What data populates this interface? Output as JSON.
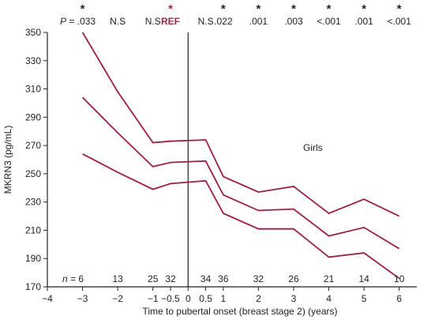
{
  "chart_data": {
    "type": "line",
    "xlabel": "Time to pubertal onset (breast stage 2) (years)",
    "ylabel": "MKRN3 (pg/mL)",
    "annotation": "Girls",
    "xlim": [
      -4,
      6.5
    ],
    "ylim": [
      170,
      350
    ],
    "x_ticks": [
      -4,
      -3,
      -2,
      -1,
      -0.5,
      0,
      0.5,
      1,
      2,
      3,
      4,
      5,
      6
    ],
    "x_tick_labels": [
      "−4",
      "−3",
      "−2",
      "−1",
      "−0.5",
      "0",
      "0.5",
      "1",
      "2",
      "3",
      "4",
      "5",
      "6"
    ],
    "y_ticks": [
      170,
      190,
      210,
      230,
      250,
      270,
      290,
      310,
      330,
      350
    ],
    "x": [
      -3,
      -2,
      -1,
      -0.5,
      0.5,
      1,
      2,
      3,
      4,
      5,
      6
    ],
    "series": [
      {
        "values": [
          350,
          308,
          272,
          273,
          274,
          248,
          237,
          241,
          222,
          232,
          220
        ]
      },
      {
        "values": [
          304,
          279,
          255,
          258,
          259,
          235,
          224,
          225,
          206,
          212,
          197
        ]
      },
      {
        "values": [
          264,
          251,
          239,
          243,
          245,
          222,
          211,
          211,
          191,
          194,
          176
        ]
      }
    ],
    "reference_x": 0,
    "p_values": [
      {
        "x": -3,
        "label": ".033",
        "prefix": "P",
        "star": true
      },
      {
        "x": -2,
        "label": "N.S",
        "star": false
      },
      {
        "x": -1,
        "label": "N.S",
        "star": false
      },
      {
        "x": -0.5,
        "label": "REF",
        "star": true,
        "ref": true
      },
      {
        "x": 0.5,
        "label": "N.S",
        "star": false
      },
      {
        "x": 1,
        "label": ".022",
        "star": true
      },
      {
        "x": 2,
        "label": ".001",
        "star": true
      },
      {
        "x": 3,
        "label": ".003",
        "star": true
      },
      {
        "x": 4,
        "label": "<.001",
        "star": true
      },
      {
        "x": 5,
        "label": ".001",
        "star": true
      },
      {
        "x": 6,
        "label": "<.001",
        "star": true
      }
    ],
    "p_prefix_sep": " = ",
    "star_symbol": "*",
    "n_label": "n",
    "n_sep": " = ",
    "n_values": [
      {
        "x": -3,
        "n": "6"
      },
      {
        "x": -2,
        "n": "13"
      },
      {
        "x": -1,
        "n": "25"
      },
      {
        "x": -0.5,
        "n": "32"
      },
      {
        "x": 0.5,
        "n": "34"
      },
      {
        "x": 1,
        "n": "36"
      },
      {
        "x": 2,
        "n": "32"
      },
      {
        "x": 3,
        "n": "26"
      },
      {
        "x": 4,
        "n": "21"
      },
      {
        "x": 5,
        "n": "14"
      },
      {
        "x": 6,
        "n": "10"
      }
    ],
    "line_color": "#9c1f44",
    "ref_color": "#a0294a"
  }
}
